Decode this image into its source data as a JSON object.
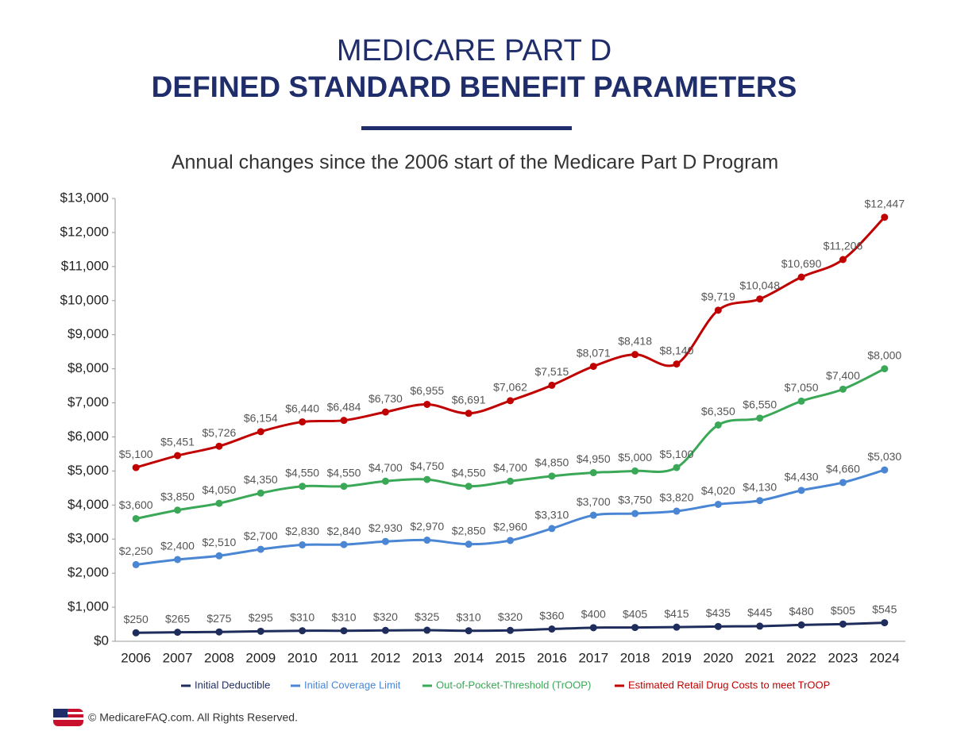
{
  "chart_data": {
    "type": "line",
    "title": "MEDICARE PART D",
    "subtitle": "DEFINED STANDARD BENEFIT PARAMETERS",
    "description": "Annual changes since the 2006 start of the Medicare Part D Program",
    "footer": "© MedicareFAQ.com. All Rights Reserved.",
    "categories": [
      "2006",
      "2007",
      "2008",
      "2009",
      "2010",
      "2011",
      "2012",
      "2013",
      "2014",
      "2015",
      "2016",
      "2017",
      "2018",
      "2019",
      "2020",
      "2021",
      "2022",
      "2023",
      "2024"
    ],
    "ylim": [
      0,
      13000
    ],
    "yticks": [
      {
        "value": 0,
        "label": "$0"
      },
      {
        "value": 1000,
        "label": "$1,000"
      },
      {
        "value": 2000,
        "label": "$2,000"
      },
      {
        "value": 3000,
        "label": "$3,000"
      },
      {
        "value": 4000,
        "label": "$4,000"
      },
      {
        "value": 5000,
        "label": "$5,000"
      },
      {
        "value": 6000,
        "label": "$6,000"
      },
      {
        "value": 7000,
        "label": "$7,000"
      },
      {
        "value": 8000,
        "label": "$8,000"
      },
      {
        "value": 9000,
        "label": "$9,000"
      },
      {
        "value": 10000,
        "label": "$10,000"
      },
      {
        "value": 11000,
        "label": "$11,000"
      },
      {
        "value": 12000,
        "label": "$12,000"
      },
      {
        "value": 13000,
        "label": "$13,000"
      }
    ],
    "grid": false,
    "legend": "bottom",
    "series": [
      {
        "name": "Initial Deductible",
        "color": "#1f2d5c",
        "values": [
          250,
          265,
          275,
          295,
          310,
          310,
          320,
          325,
          310,
          320,
          360,
          400,
          405,
          415,
          435,
          445,
          480,
          505,
          545
        ],
        "value_labels": [
          "$250",
          "$265",
          "$275",
          "$295",
          "$310",
          "$310",
          "$320",
          "$325",
          "$310",
          "$320",
          "$360",
          "$400",
          "$405",
          "$415",
          "$435",
          "$445",
          "$480",
          "$505",
          "$545"
        ]
      },
      {
        "name": "Initial Coverage Limit",
        "color": "#4a86d4",
        "values": [
          2250,
          2400,
          2510,
          2700,
          2830,
          2840,
          2930,
          2970,
          2850,
          2960,
          3310,
          3700,
          3750,
          3820,
          4020,
          4130,
          4430,
          4660,
          5030
        ],
        "value_labels": [
          "$2,250",
          "$2,400",
          "$2,510",
          "$2,700",
          "$2,830",
          "$2,840",
          "$2,930",
          "$2,970",
          "$2,850",
          "$2,960",
          "$3,310",
          "$3,700",
          "$3,750",
          "$3,820",
          "$4,020",
          "$4,130",
          "$4,430",
          "$4,660",
          "$5,030"
        ]
      },
      {
        "name": "Out-of-Pocket-Threshold (TrOOP)",
        "color": "#3aa857",
        "values": [
          3600,
          3850,
          4050,
          4350,
          4550,
          4550,
          4700,
          4750,
          4550,
          4700,
          4850,
          4950,
          5000,
          5100,
          6350,
          6550,
          7050,
          7400,
          8000
        ],
        "value_labels": [
          "$3,600",
          "$3,850",
          "$4,050",
          "$4,350",
          "$4,550",
          "$4,550",
          "$4,700",
          "$4,750",
          "$4,550",
          "$4,700",
          "$4,850",
          "$4,950",
          "$5,000",
          "$5,100",
          "$6,350",
          "$6,550",
          "$7,050",
          "$7,400",
          "$8,000"
        ]
      },
      {
        "name": "Estimated Retail Drug Costs to meet TrOOP",
        "color": "#c00000",
        "values": [
          5100,
          5451,
          5726,
          6154,
          6440,
          6484,
          6730,
          6955,
          6691,
          7062,
          7515,
          8071,
          8418,
          8140,
          9719,
          10048,
          10690,
          11206,
          12447
        ],
        "value_labels": [
          "$5,100",
          "$5,451",
          "$5,726",
          "$6,154",
          "$6,440",
          "$6,484",
          "$6,730",
          "$6,955",
          "$6,691",
          "$7,062",
          "$7,515",
          "$8,071",
          "$8,418",
          "$8,140",
          "$9,719",
          "$10,048",
          "$10,690",
          "$11,206",
          "$12,447"
        ]
      }
    ]
  }
}
